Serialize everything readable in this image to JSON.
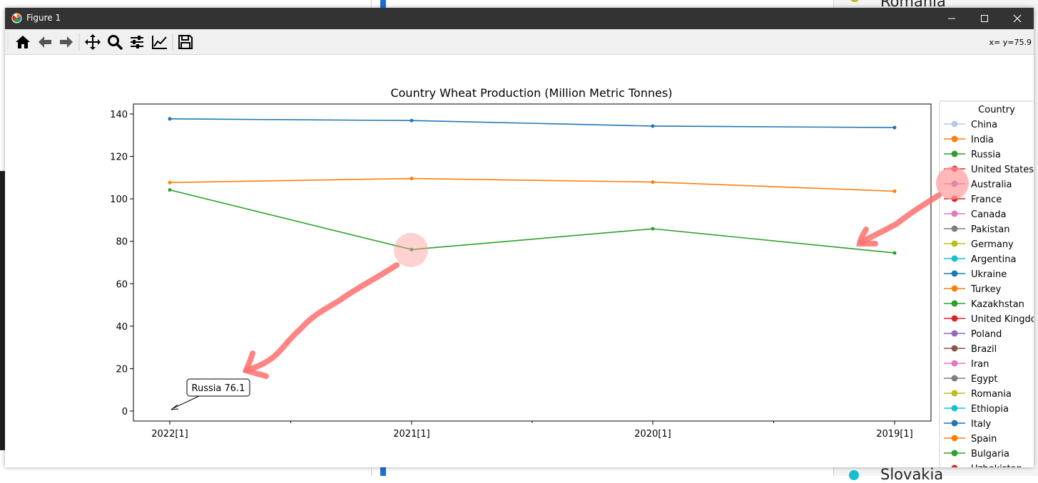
{
  "window": {
    "title": "Figure 1",
    "coord_readout": "x= y=75.9"
  },
  "toolbar": {
    "buttons": [
      "home-icon",
      "back-arrow-icon",
      "forward-arrow-icon",
      "pan-icon",
      "zoom-icon",
      "configure-subplots-icon",
      "edit-axis-icon",
      "save-icon"
    ]
  },
  "background": {
    "top_right_text": "Romania",
    "bottom_right_text": "Slovakia"
  },
  "chart_data": {
    "type": "line",
    "title": "Country Wheat Production (Million Metric Tonnes)",
    "xlabel": "",
    "ylabel": "",
    "categories": [
      "2022[1]",
      "2021[1]",
      "2020[1]",
      "2019[1]"
    ],
    "ylim": [
      -5,
      145
    ],
    "yticks": [
      0,
      20,
      40,
      60,
      80,
      100,
      120,
      140
    ],
    "grid": false,
    "series": [
      {
        "name": "China",
        "color": "#1f77b4",
        "values": [
          137.7,
          136.9,
          134.3,
          133.6
        ]
      },
      {
        "name": "India",
        "color": "#ff7f0e",
        "values": [
          107.7,
          109.6,
          107.9,
          103.6
        ]
      },
      {
        "name": "Russia",
        "color": "#2ca02c",
        "values": [
          104.2,
          76.1,
          85.9,
          74.5
        ]
      }
    ],
    "legend": {
      "title": "Country",
      "placement": "right",
      "entries": [
        {
          "name": "China",
          "color": "#aec7e8",
          "faded": true
        },
        {
          "name": "India",
          "color": "#ff7f0e"
        },
        {
          "name": "Russia",
          "color": "#2ca02c"
        },
        {
          "name": "United States",
          "color": "#d62728"
        },
        {
          "name": "Australia",
          "color": "#9467bd"
        },
        {
          "name": "France",
          "color": "#d62728"
        },
        {
          "name": "Canada",
          "color": "#e377c2"
        },
        {
          "name": "Pakistan",
          "color": "#7f7f7f"
        },
        {
          "name": "Germany",
          "color": "#bcbd22"
        },
        {
          "name": "Argentina",
          "color": "#17becf"
        },
        {
          "name": "Ukraine",
          "color": "#1f77b4"
        },
        {
          "name": "Turkey",
          "color": "#ff7f0e"
        },
        {
          "name": "Kazakhstan",
          "color": "#2ca02c"
        },
        {
          "name": "United Kingdom",
          "color": "#d62728"
        },
        {
          "name": "Poland",
          "color": "#9467bd"
        },
        {
          "name": "Brazil",
          "color": "#8c564b"
        },
        {
          "name": "Iran",
          "color": "#e377c2"
        },
        {
          "name": "Egypt",
          "color": "#7f7f7f"
        },
        {
          "name": "Romania",
          "color": "#bcbd22"
        },
        {
          "name": "Ethiopia",
          "color": "#17becf"
        },
        {
          "name": "Italy",
          "color": "#1f77b4"
        },
        {
          "name": "Spain",
          "color": "#ff7f0e"
        },
        {
          "name": "Bulgaria",
          "color": "#2ca02c"
        },
        {
          "name": "Uzbekistan",
          "color": "#d62728"
        }
      ]
    },
    "annotation": {
      "text": "Russia 76.1",
      "x_category": "2022[1]",
      "y": 0
    }
  }
}
